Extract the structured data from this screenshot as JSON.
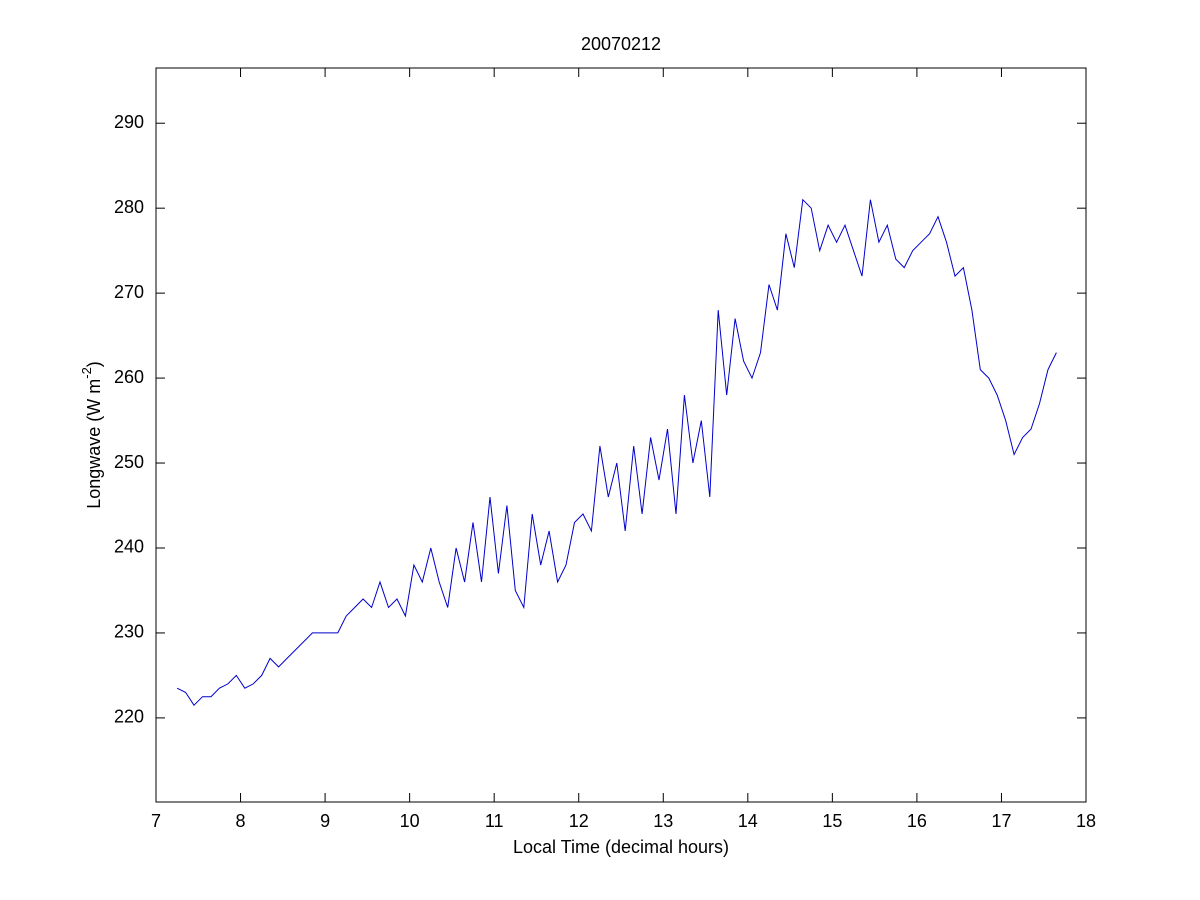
{
  "chart_data": {
    "type": "line",
    "title": "20070212",
    "xlabel": "Local Time (decimal hours)",
    "ylabel": {
      "text": "Longwave (W m",
      "superscript": "-2",
      "suffix": ")"
    },
    "xlim": [
      7,
      18
    ],
    "ylim": [
      210.1,
      296.5
    ],
    "xticks": [
      7,
      8,
      9,
      10,
      11,
      12,
      13,
      14,
      15,
      16,
      17,
      18
    ],
    "yticks": [
      220,
      230,
      240,
      250,
      260,
      270,
      280,
      290
    ],
    "grid": false,
    "series": [
      {
        "color": "#0000cc",
        "x": [
          7.25,
          7.35,
          7.45,
          7.55,
          7.65,
          7.75,
          7.85,
          7.95,
          8.05,
          8.15,
          8.25,
          8.35,
          8.45,
          8.55,
          8.65,
          8.75,
          8.85,
          8.95,
          9.05,
          9.15,
          9.25,
          9.35,
          9.45,
          9.55,
          9.65,
          9.75,
          9.85,
          9.95,
          10.05,
          10.15,
          10.25,
          10.35,
          10.45,
          10.55,
          10.65,
          10.75,
          10.85,
          10.95,
          11.05,
          11.15,
          11.25,
          11.35,
          11.45,
          11.55,
          11.65,
          11.75,
          11.85,
          11.95,
          12.05,
          12.15,
          12.25,
          12.35,
          12.45,
          12.55,
          12.65,
          12.75,
          12.85,
          12.95,
          13.05,
          13.15,
          13.25,
          13.35,
          13.45,
          13.55,
          13.65,
          13.75,
          13.85,
          13.95,
          14.05,
          14.15,
          14.25,
          14.35,
          14.45,
          14.55,
          14.65,
          14.75,
          14.85,
          14.95,
          15.05,
          15.15,
          15.25,
          15.35,
          15.45,
          15.55,
          15.65,
          15.75,
          15.85,
          15.95,
          16.05,
          16.15,
          16.25,
          16.35,
          16.45,
          16.55,
          16.65,
          16.75,
          16.85,
          16.95,
          17.05,
          17.15,
          17.25,
          17.35,
          17.45,
          17.55,
          17.65
        ],
        "values": [
          223.5,
          223,
          221.5,
          222.5,
          222.5,
          223.5,
          224,
          225,
          223.5,
          224,
          225,
          227,
          226,
          227,
          228,
          229,
          230,
          230,
          230,
          230,
          232,
          233,
          234,
          233,
          236,
          233,
          234,
          232,
          238,
          236,
          240,
          236,
          233,
          240,
          236,
          243,
          236,
          246,
          237,
          245,
          235,
          233,
          244,
          238,
          242,
          236,
          238,
          243,
          244,
          242,
          252,
          246,
          250,
          242,
          252,
          244,
          253,
          248,
          254,
          244,
          258,
          250,
          255,
          246,
          268,
          258,
          267,
          262,
          260,
          263,
          271,
          268,
          277,
          273,
          281,
          280,
          275,
          278,
          276,
          278,
          275,
          272,
          281,
          276,
          278,
          274,
          273,
          275,
          276,
          277,
          279,
          276,
          272,
          273,
          268,
          261,
          260,
          258,
          255,
          251,
          253,
          254,
          257,
          261,
          263
        ]
      }
    ]
  }
}
